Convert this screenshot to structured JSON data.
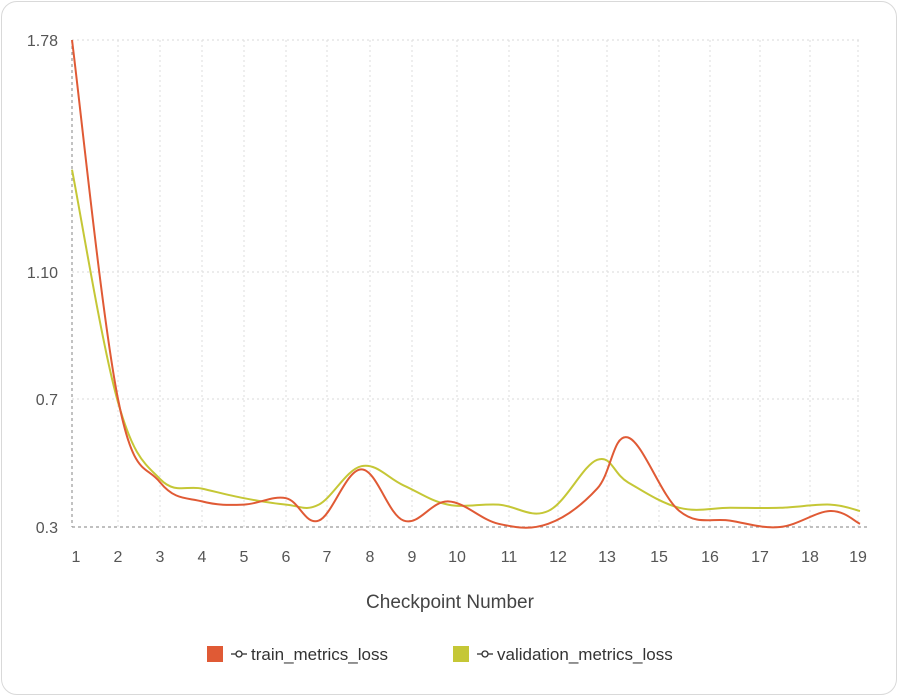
{
  "chart_data": {
    "type": "line",
    "xlabel": "Checkpoint Number",
    "ylabel": "",
    "x_ticks": [
      "1",
      "2",
      "3",
      "4",
      "5",
      "6",
      "7",
      "8",
      "9",
      "10",
      "11",
      "12",
      "13",
      "15",
      "16",
      "17",
      "18",
      "19"
    ],
    "y_ticks": [
      "0.3",
      "0.7",
      "1.10",
      "1.78"
    ],
    "y_tick_values": [
      0.3,
      0.7,
      1.1,
      1.78
    ],
    "ylim": [
      0.3,
      1.78
    ],
    "grid": true,
    "legend_position": "bottom",
    "series": [
      {
        "name": "train_metrics_loss",
        "color": "#e05a35",
        "x": [
          1,
          2,
          3,
          4,
          5,
          6,
          6.8,
          7.8,
          8.8,
          9.8,
          10.8,
          11.8,
          12.8,
          13.8,
          15.4,
          16.4,
          17.4,
          18.4,
          19
        ],
        "y": [
          1.78,
          0.7,
          0.44,
          0.38,
          0.37,
          0.39,
          0.32,
          0.48,
          0.32,
          0.38,
          0.31,
          0.31,
          0.42,
          0.58,
          0.35,
          0.32,
          0.3,
          0.35,
          0.31
        ]
      },
      {
        "name": "validation_metrics_loss",
        "color": "#c5c736",
        "x": [
          1,
          2,
          3,
          4,
          5,
          6,
          6.8,
          7.8,
          8.8,
          9.8,
          10.8,
          11.8,
          12.8,
          13.8,
          15.4,
          16.4,
          17.4,
          18.4,
          19
        ],
        "y": [
          1.4,
          0.69,
          0.45,
          0.42,
          0.39,
          0.37,
          0.37,
          0.49,
          0.43,
          0.37,
          0.37,
          0.35,
          0.51,
          0.44,
          0.36,
          0.36,
          0.36,
          0.37,
          0.35
        ]
      }
    ]
  }
}
